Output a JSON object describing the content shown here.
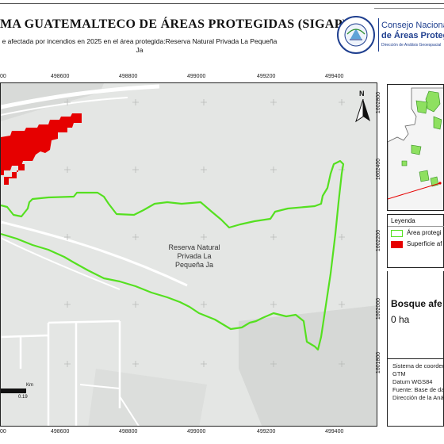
{
  "header": {
    "title": "MA GUATEMALTECO DE ÁREAS PROTEGIDAS  (SIGAP)",
    "subtitle": "e afectada por incendios en 2025 en el área protegida:Reserva Natural Privada La Pequeña Ja"
  },
  "logo": {
    "seal_text": "GOBIERNO DE LA REPÚBLICA GUATEMALA",
    "line1": "Consejo Nacional",
    "line2": "de Áreas Protegidas",
    "line3": "Dirección de Análisis Geoespacial",
    "brand_color": "#1f3f8f"
  },
  "map": {
    "x_ticks": [
      "00",
      "498600",
      "498800",
      "499000",
      "499200",
      "499400"
    ],
    "y_ticks": [
      "1602800",
      "1602400",
      "1602200",
      "1602000",
      "1601800"
    ],
    "area_label": "Reserva Natural Privada La Pequeña Ja",
    "north_label": "N",
    "scale_unit": "Km",
    "scale_value": "0.19",
    "colors": {
      "boundary": "#55e020",
      "fire": "#e60000",
      "basemap": "#e4e6e4",
      "roads": "#ffffff"
    }
  },
  "legend": {
    "title": "Leyenda",
    "items": [
      {
        "label": "Área protegi",
        "swatch": "outline",
        "color": "#55e020"
      },
      {
        "label": "Superficie af",
        "swatch": "fill",
        "color": "#e60000"
      }
    ]
  },
  "stat": {
    "title": "Bosque afe",
    "value": "0 ha"
  },
  "info": {
    "lines": [
      "Sistema de coordena",
      "GTM",
      "Datum WGS84",
      "Fuente: Base de dat",
      "Dirección de la Análi"
    ]
  }
}
